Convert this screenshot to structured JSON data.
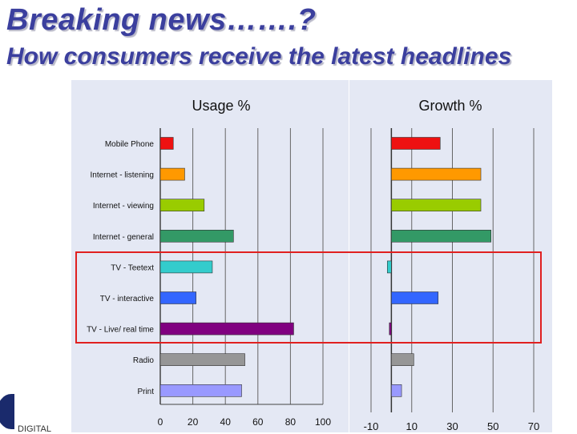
{
  "header": {
    "title": "Breaking news…….?",
    "subtitle": "How consumers receive the latest headlines"
  },
  "logo": {
    "text": "DIGITAL"
  },
  "colors": {
    "title": "#3b3f9e",
    "panel_bg": "#e4e8f4",
    "highlight_border": "#e02020"
  },
  "chart_data": [
    {
      "type": "bar",
      "orientation": "horizontal",
      "title": "Usage %",
      "categories": [
        "Mobile Phone",
        "Internet - listening",
        "Internet - viewing",
        "Internet - general",
        "TV - Teetext",
        "TV - interactive",
        "TV - Live/ real time",
        "Radio",
        "Print"
      ],
      "values": [
        8,
        15,
        27,
        45,
        32,
        22,
        82,
        52,
        50
      ],
      "colors": [
        "#ee1111",
        "#ff9900",
        "#99cc00",
        "#339966",
        "#33cccc",
        "#3366ff",
        "#800080",
        "#969696",
        "#9999ff"
      ],
      "xlim": [
        0,
        100
      ],
      "xticks": [
        0,
        20,
        40,
        60,
        80,
        100
      ],
      "grid": true
    },
    {
      "type": "bar",
      "orientation": "horizontal",
      "title": "Growth %",
      "categories": [
        "Mobile Phone",
        "Internet - listening",
        "Internet - viewing",
        "Internet - general",
        "TV - Teetext",
        "TV - interactive",
        "TV - Live/ real time",
        "Radio",
        "Print"
      ],
      "values": [
        24,
        44,
        44,
        49,
        -2,
        23,
        -1,
        11,
        5
      ],
      "colors": [
        "#ee1111",
        "#ff9900",
        "#99cc00",
        "#339966",
        "#33cccc",
        "#3366ff",
        "#800080",
        "#969696",
        "#9999ff"
      ],
      "xlim": [
        -10,
        70
      ],
      "xticks": [
        -10,
        10,
        30,
        50,
        70
      ],
      "grid": true
    }
  ],
  "highlight": {
    "categories": [
      "TV - Teetext",
      "TV - interactive",
      "TV - Live/ real time"
    ]
  }
}
